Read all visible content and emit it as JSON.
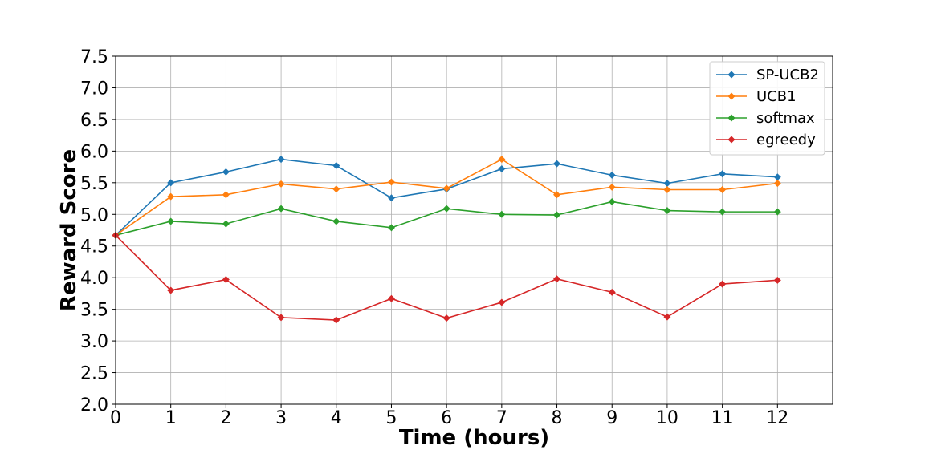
{
  "chart_data": {
    "type": "line",
    "title": "",
    "xlabel": "Time (hours)",
    "ylabel": "Reward Score",
    "x": [
      0,
      1,
      2,
      3,
      4,
      5,
      6,
      7,
      8,
      9,
      10,
      11,
      12
    ],
    "xlim": [
      0,
      13
    ],
    "ylim": [
      2.0,
      7.5
    ],
    "xticks": [
      0,
      1,
      2,
      3,
      4,
      5,
      6,
      7,
      8,
      9,
      10,
      11,
      12
    ],
    "yticks": [
      2.0,
      2.5,
      3.0,
      3.5,
      4.0,
      4.5,
      5.0,
      5.5,
      6.0,
      6.5,
      7.0,
      7.5
    ],
    "grid": true,
    "legend_position": "top-right",
    "marker": "diamond",
    "series": [
      {
        "name": "SP-UCB2",
        "color": "#1f77b4",
        "values": [
          4.67,
          5.5,
          5.67,
          5.87,
          5.77,
          5.26,
          5.4,
          5.72,
          5.8,
          5.62,
          5.49,
          5.64,
          5.59
        ]
      },
      {
        "name": "UCB1",
        "color": "#ff7f0e",
        "values": [
          4.67,
          5.28,
          5.31,
          5.48,
          5.4,
          5.51,
          5.41,
          5.87,
          5.31,
          5.43,
          5.39,
          5.39,
          5.49
        ]
      },
      {
        "name": "softmax",
        "color": "#2ca02c",
        "values": [
          4.67,
          4.89,
          4.85,
          5.09,
          4.89,
          4.79,
          5.09,
          5.0,
          4.99,
          5.2,
          5.06,
          5.04,
          5.04
        ]
      },
      {
        "name": "egreedy",
        "color": "#d62728",
        "values": [
          4.67,
          3.8,
          3.97,
          3.37,
          3.33,
          3.67,
          3.36,
          3.61,
          3.98,
          3.77,
          3.38,
          3.9,
          3.96
        ]
      }
    ]
  }
}
